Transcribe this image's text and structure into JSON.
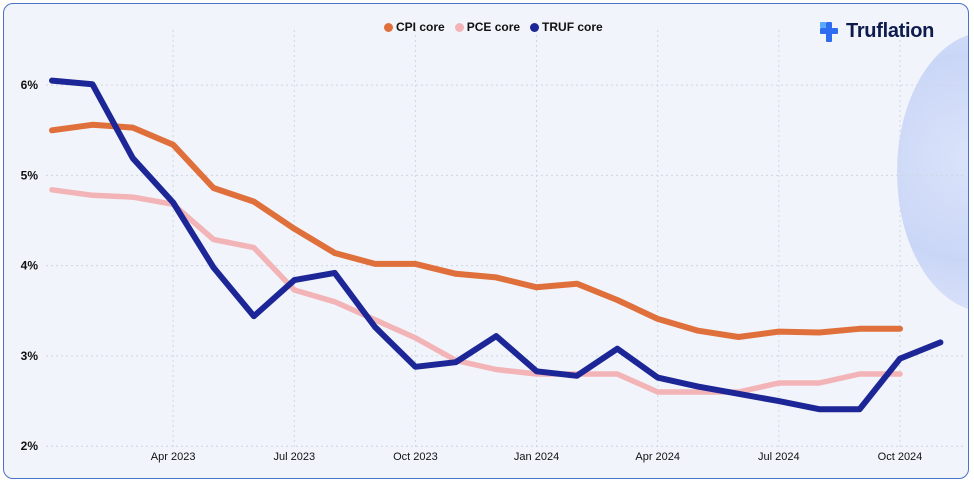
{
  "brand": {
    "name": "Truflation"
  },
  "colors": {
    "cpi": "#e0703b",
    "pce": "#f2b4b7",
    "truf": "#1c2696",
    "grid": "#cfd5e1"
  },
  "chart_data": {
    "type": "line",
    "title": "",
    "xlabel": "",
    "ylabel": "",
    "x": [
      "2023-01",
      "2023-02",
      "2023-03",
      "2023-04",
      "2023-05",
      "2023-06",
      "2023-07",
      "2023-08",
      "2023-09",
      "2023-10",
      "2023-11",
      "2023-12",
      "2024-01",
      "2024-02",
      "2024-03",
      "2024-04",
      "2024-05",
      "2024-06",
      "2024-07",
      "2024-08",
      "2024-09",
      "2024-10",
      "2024-11",
      "2024-12"
    ],
    "x_ticks": [
      {
        "x": "2023-04",
        "label": "Apr 2023"
      },
      {
        "x": "2023-07",
        "label": "Jul 2023"
      },
      {
        "x": "2023-10",
        "label": "Oct 2023"
      },
      {
        "x": "2024-01",
        "label": "Jan 2024"
      },
      {
        "x": "2024-04",
        "label": "Apr 2024"
      },
      {
        "x": "2024-07",
        "label": "Jul 2024"
      },
      {
        "x": "2024-10",
        "label": "Oct 2024"
      }
    ],
    "y_ticks": [
      {
        "y": 2,
        "label": "2%"
      },
      {
        "y": 3,
        "label": "3%"
      },
      {
        "y": 4,
        "label": "4%"
      },
      {
        "y": 5,
        "label": "5%"
      },
      {
        "y": 6,
        "label": "6%"
      }
    ],
    "ylim": [
      1.98,
      6.5
    ],
    "grid": true,
    "legend_position": "top-center",
    "series": [
      {
        "name": "CPI core",
        "key": "cpi",
        "values": [
          5.5,
          5.56,
          5.53,
          5.34,
          4.86,
          4.71,
          4.41,
          4.14,
          4.02,
          4.02,
          3.91,
          3.87,
          3.76,
          3.8,
          3.62,
          3.41,
          3.28,
          3.21,
          3.27,
          3.26,
          3.3,
          3.3,
          null,
          null
        ]
      },
      {
        "name": "PCE core",
        "key": "pce",
        "values": [
          4.84,
          4.78,
          4.76,
          4.68,
          4.29,
          4.2,
          3.73,
          3.6,
          3.4,
          3.2,
          2.95,
          2.85,
          2.8,
          2.8,
          2.8,
          2.6,
          2.6,
          2.6,
          2.7,
          2.7,
          2.8,
          2.8,
          null,
          null
        ]
      },
      {
        "name": "TRUF core",
        "key": "truf",
        "values": [
          6.05,
          6.01,
          5.19,
          4.7,
          3.98,
          3.44,
          3.84,
          3.92,
          3.32,
          2.88,
          2.93,
          3.22,
          2.83,
          2.78,
          3.08,
          2.76,
          2.66,
          2.58,
          2.5,
          2.41,
          2.41,
          2.97,
          3.15,
          null
        ]
      }
    ]
  }
}
